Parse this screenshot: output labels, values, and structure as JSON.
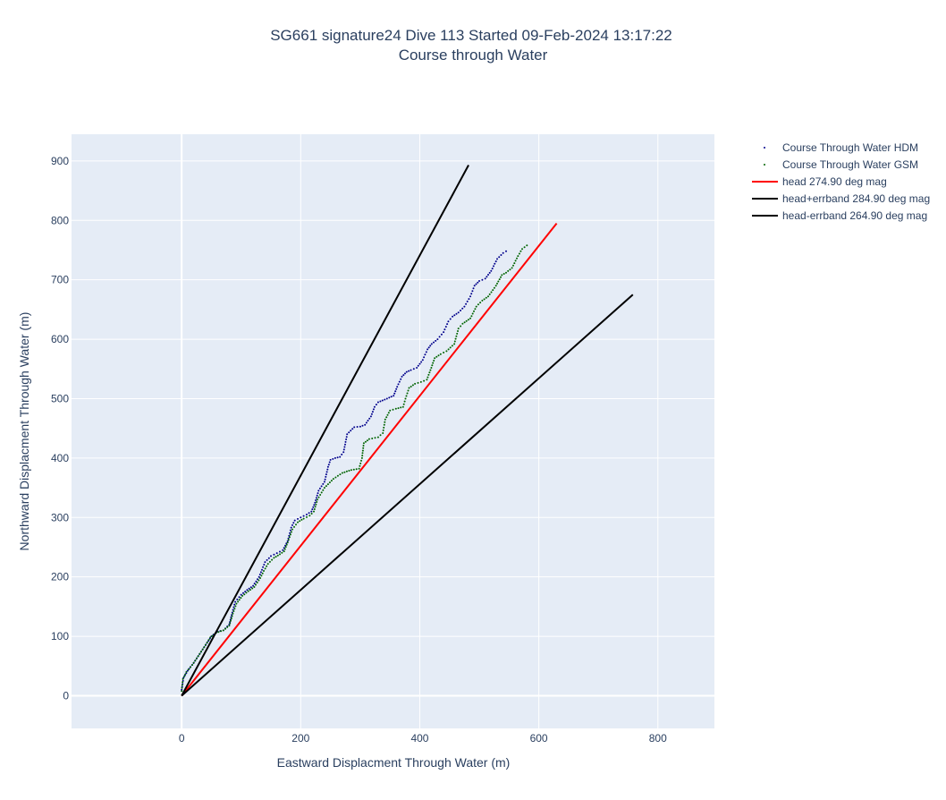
{
  "chart_data": {
    "type": "scatter",
    "title_line1": "SG661 signature24 Dive 113 Started 09-Feb-2024 13:17:22",
    "title_line2": "Course through Water",
    "xlabel": "Eastward Displacment Through Water (m)",
    "ylabel": "Northward Displacment Through Water (m)",
    "xlim": [
      -185,
      895
    ],
    "ylim": [
      -55,
      945
    ],
    "xticks": [
      0,
      200,
      400,
      600,
      800
    ],
    "yticks": [
      0,
      100,
      200,
      300,
      400,
      500,
      600,
      700,
      800,
      900
    ],
    "grid": true,
    "legend_position": "right",
    "colors": {
      "plot_bg": "#e5ecf6",
      "grid": "#ffffff",
      "hdm": "#00008b",
      "gsm": "#006400",
      "head": "#ff0000",
      "errband": "#000000"
    },
    "series": [
      {
        "name": "Course Through Water HDM",
        "mode": "markers",
        "color": "#00008b",
        "x": [
          0,
          3,
          10,
          20,
          30,
          40,
          50,
          60,
          70,
          80,
          85,
          90,
          100,
          110,
          120,
          130,
          135,
          140,
          150,
          160,
          170,
          178,
          184,
          190,
          200,
          210,
          218,
          224,
          230,
          240,
          246,
          250,
          258,
          266,
          272,
          278,
          290,
          300,
          308,
          318,
          324,
          330,
          345,
          356,
          362,
          370,
          378,
          385,
          395,
          405,
          413,
          420,
          430,
          440,
          448,
          455,
          465,
          475,
          485,
          492,
          500,
          510,
          520,
          530,
          540,
          545
        ],
        "y": [
          10,
          30,
          42,
          55,
          70,
          85,
          100,
          108,
          110,
          120,
          140,
          158,
          170,
          178,
          185,
          200,
          212,
          225,
          235,
          240,
          245,
          260,
          283,
          295,
          300,
          305,
          310,
          325,
          345,
          360,
          385,
          397,
          400,
          402,
          410,
          440,
          452,
          453,
          456,
          470,
          486,
          494,
          500,
          505,
          520,
          537,
          545,
          548,
          552,
          565,
          583,
          592,
          600,
          612,
          630,
          638,
          645,
          655,
          672,
          690,
          698,
          702,
          715,
          735,
          745,
          748
        ]
      },
      {
        "name": "Course Through Water GSM",
        "mode": "markers",
        "color": "#006400",
        "x": [
          0,
          2,
          8,
          18,
          28,
          38,
          48,
          58,
          70,
          80,
          86,
          92,
          102,
          112,
          122,
          132,
          138,
          145,
          155,
          165,
          172,
          178,
          186,
          195,
          205,
          215,
          222,
          228,
          240,
          255,
          270,
          285,
          298,
          303,
          306,
          315,
          330,
          338,
          342,
          350,
          360,
          372,
          376,
          382,
          392,
          402,
          412,
          418,
          425,
          435,
          445,
          458,
          465,
          472,
          485,
          495,
          505,
          515,
          528,
          538,
          545,
          555,
          565,
          572,
          580
        ],
        "y": [
          8,
          28,
          40,
          52,
          67,
          82,
          98,
          106,
          110,
          118,
          138,
          155,
          168,
          176,
          183,
          198,
          210,
          222,
          232,
          238,
          243,
          258,
          280,
          292,
          298,
          303,
          310,
          330,
          350,
          365,
          375,
          380,
          382,
          400,
          425,
          432,
          435,
          442,
          465,
          480,
          483,
          486,
          500,
          518,
          525,
          528,
          532,
          548,
          568,
          575,
          580,
          592,
          618,
          626,
          635,
          655,
          665,
          672,
          690,
          708,
          712,
          720,
          740,
          752,
          758
        ]
      },
      {
        "name": "head 274.90 deg mag",
        "mode": "lines",
        "color": "#ff0000",
        "x": [
          0,
          630
        ],
        "y": [
          0,
          795
        ]
      },
      {
        "name": "head+errband 284.90 deg mag",
        "mode": "lines",
        "color": "#000000",
        "x": [
          0,
          482
        ],
        "y": [
          0,
          893
        ]
      },
      {
        "name": "head-errband 264.90 deg mag",
        "mode": "lines",
        "color": "#000000",
        "x": [
          0,
          758
        ],
        "y": [
          0,
          675
        ]
      }
    ]
  }
}
